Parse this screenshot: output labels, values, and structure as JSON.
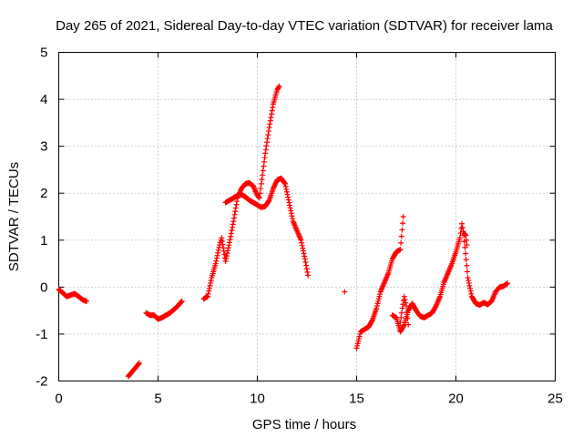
{
  "chart_data": {
    "type": "scatter",
    "title": "Day 265 of 2021, Sidereal Day-to-day VTEC variation (SDTVAR) for receiver lama",
    "xlabel": "GPS time / hours",
    "ylabel": "SDTVAR / TECUs",
    "xlim": [
      0,
      25
    ],
    "ylim": [
      -2,
      5
    ],
    "xticks": [
      "0",
      "5",
      "10",
      "15",
      "20",
      "25"
    ],
    "yticks": [
      "-2",
      "-1",
      "0",
      "1",
      "2",
      "3",
      "4",
      "5"
    ],
    "grid": true,
    "marker": "plus",
    "color": "#ff0000",
    "series": [
      {
        "segments": [
          [
            [
              0.0,
              -0.05
            ],
            [
              0.2,
              -0.12
            ],
            [
              0.4,
              -0.2
            ],
            [
              0.6,
              -0.17
            ],
            [
              0.8,
              -0.14
            ],
            [
              1.0,
              -0.2
            ],
            [
              1.2,
              -0.27
            ],
            [
              1.4,
              -0.3
            ]
          ],
          [
            [
              3.5,
              -1.9
            ],
            [
              3.7,
              -1.8
            ],
            [
              3.9,
              -1.7
            ],
            [
              4.05,
              -1.62
            ]
          ],
          [
            [
              4.4,
              -0.55
            ],
            [
              4.6,
              -0.6
            ],
            [
              4.8,
              -0.6
            ],
            [
              5.0,
              -0.68
            ],
            [
              5.2,
              -0.65
            ],
            [
              5.4,
              -0.6
            ],
            [
              5.6,
              -0.55
            ],
            [
              5.8,
              -0.48
            ],
            [
              6.0,
              -0.4
            ],
            [
              6.2,
              -0.3
            ]
          ],
          [
            [
              7.3,
              -0.25
            ],
            [
              7.5,
              -0.2
            ],
            [
              7.7,
              0.2
            ],
            [
              7.9,
              0.5
            ],
            [
              8.1,
              0.9
            ],
            [
              8.2,
              1.05
            ],
            [
              8.4,
              0.55
            ],
            [
              8.6,
              0.95
            ],
            [
              8.8,
              1.4
            ],
            [
              9.0,
              1.9
            ],
            [
              9.2,
              2.1
            ],
            [
              9.4,
              2.2
            ],
            [
              9.6,
              2.22
            ],
            [
              9.8,
              2.15
            ],
            [
              10.0,
              1.95
            ],
            [
              10.1,
              1.9
            ],
            [
              10.2,
              2.2
            ],
            [
              10.4,
              2.85
            ],
            [
              10.6,
              3.4
            ],
            [
              10.8,
              3.9
            ],
            [
              11.0,
              4.2
            ],
            [
              11.1,
              4.28
            ]
          ],
          [
            [
              8.4,
              1.8
            ],
            [
              8.6,
              1.85
            ],
            [
              8.8,
              1.9
            ],
            [
              9.0,
              1.95
            ],
            [
              9.2,
              1.97
            ],
            [
              9.4,
              1.92
            ],
            [
              9.6,
              1.85
            ],
            [
              9.8,
              1.8
            ],
            [
              10.0,
              1.75
            ],
            [
              10.2,
              1.7
            ],
            [
              10.4,
              1.72
            ],
            [
              10.6,
              1.85
            ],
            [
              10.8,
              2.1
            ],
            [
              11.0,
              2.28
            ],
            [
              11.2,
              2.32
            ],
            [
              11.4,
              2.2
            ],
            [
              11.6,
              1.8
            ],
            [
              11.8,
              1.4
            ],
            [
              12.0,
              1.2
            ],
            [
              12.2,
              1.0
            ],
            [
              12.4,
              0.6
            ],
            [
              12.55,
              0.25
            ]
          ],
          [
            [
              14.4,
              -0.1
            ]
          ],
          [
            [
              15.0,
              -1.3
            ],
            [
              15.2,
              -0.95
            ],
            [
              15.4,
              -0.9
            ],
            [
              15.6,
              -0.85
            ],
            [
              15.8,
              -0.7
            ],
            [
              16.0,
              -0.45
            ],
            [
              16.2,
              -0.1
            ],
            [
              16.4,
              0.1
            ],
            [
              16.6,
              0.3
            ],
            [
              16.8,
              0.6
            ],
            [
              17.0,
              0.75
            ],
            [
              17.2,
              0.8
            ],
            [
              17.35,
              1.5
            ]
          ],
          [
            [
              16.8,
              -0.6
            ],
            [
              17.0,
              -0.65
            ],
            [
              17.2,
              -0.95
            ],
            [
              17.4,
              -0.8
            ],
            [
              17.6,
              -0.5
            ],
            [
              17.8,
              -0.35
            ],
            [
              18.0,
              -0.5
            ],
            [
              18.2,
              -0.62
            ],
            [
              18.4,
              -0.65
            ],
            [
              18.6,
              -0.6
            ],
            [
              18.8,
              -0.55
            ],
            [
              19.0,
              -0.4
            ],
            [
              19.2,
              -0.2
            ],
            [
              19.4,
              0.1
            ],
            [
              19.6,
              0.3
            ],
            [
              19.8,
              0.5
            ],
            [
              20.0,
              0.75
            ],
            [
              20.2,
              1.05
            ],
            [
              20.3,
              1.35
            ],
            [
              20.4,
              1.1
            ],
            [
              20.6,
              0.2
            ],
            [
              20.8,
              -0.2
            ],
            [
              21.0,
              -0.35
            ],
            [
              21.2,
              -0.38
            ],
            [
              21.4,
              -0.33
            ],
            [
              21.6,
              -0.37
            ],
            [
              21.8,
              -0.3
            ],
            [
              22.0,
              -0.1
            ],
            [
              22.2,
              0.0
            ],
            [
              22.4,
              0.02
            ],
            [
              22.6,
              0.08
            ]
          ],
          [
            [
              17.2,
              -0.75
            ],
            [
              17.3,
              -0.45
            ],
            [
              17.4,
              -0.2
            ],
            [
              17.5,
              -0.4
            ],
            [
              17.6,
              -0.8
            ]
          ],
          [
            [
              20.4,
              1.15
            ],
            [
              20.5,
              1.1
            ],
            [
              20.55,
              0.9
            ]
          ]
        ]
      }
    ]
  }
}
